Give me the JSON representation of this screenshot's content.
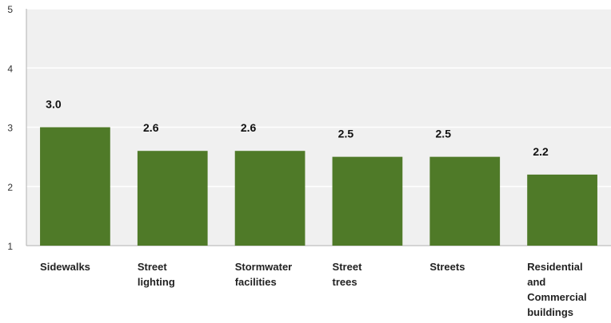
{
  "chart_data": {
    "type": "bar",
    "title": "",
    "xlabel": "",
    "ylabel": "",
    "categories": [
      "Sidewalks",
      "Street lighting",
      "Stormwater facilities",
      "Street trees",
      "Streets",
      "Residential and Commercial buildings"
    ],
    "category_lines": [
      [
        "Sidewalks"
      ],
      [
        "Street",
        "lighting"
      ],
      [
        "Stormwater",
        "facilities"
      ],
      [
        "Street",
        "trees"
      ],
      [
        "Streets"
      ],
      [
        "Residential",
        "and",
        "Commercial",
        "buildings"
      ]
    ],
    "values": [
      3.0,
      2.6,
      2.6,
      2.5,
      2.5,
      2.2
    ],
    "data_labels": [
      "3.0",
      "2.6",
      "2.6",
      "2.5",
      "2.5",
      "2.2"
    ],
    "ylim": [
      1,
      5
    ],
    "yticks": [
      1,
      2,
      3,
      4,
      5
    ],
    "grid": true,
    "legend": "none",
    "colors": {
      "bar": "#4f7a28",
      "plot_background": "#f0f0f0",
      "grid": "#ffffff",
      "axis": "#b0b0b0"
    }
  }
}
